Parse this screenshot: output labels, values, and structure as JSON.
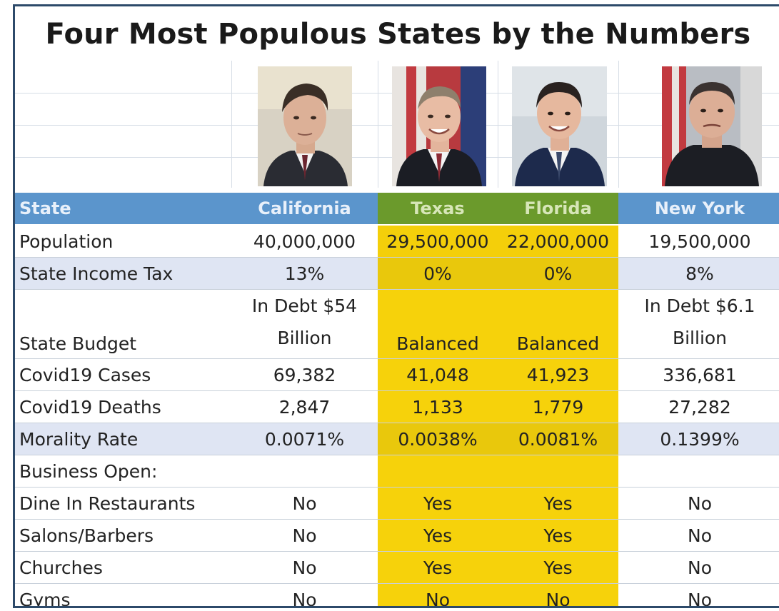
{
  "title": "Four Most Populous States by the Numbers",
  "photos": [
    {
      "name": "california-governor",
      "suit": "#2a2c33",
      "tie": "#6a2630",
      "bg": "#d8d2c4"
    },
    {
      "name": "texas-governor",
      "suit": "#1b1d24",
      "tie": "#8c2a34",
      "bg": "#b83a3f"
    },
    {
      "name": "florida-governor",
      "suit": "#1d2a4c",
      "tie": "#3b4a6c",
      "bg": "#cfd6dc"
    },
    {
      "name": "new-york-governor",
      "suit": "#1c1e24",
      "tie": "#1c1e24",
      "bg": "#b9bdc3"
    }
  ],
  "header": {
    "state": "State",
    "cols": [
      "California",
      "Texas",
      "Florida",
      "New York"
    ]
  },
  "rows": {
    "population": {
      "label": "Population",
      "values": [
        "40,000,000",
        "29,500,000",
        "22,000,000",
        "19,500,000"
      ]
    },
    "income_tax": {
      "label": "State Income Tax",
      "values": [
        "13%",
        "0%",
        "0%",
        "8%"
      ]
    },
    "budget": {
      "label": "State Budget",
      "california": [
        "In Debt $54",
        "Billion"
      ],
      "texas": "Balanced",
      "florida": "Balanced",
      "new_york": [
        "In Debt $6.1",
        "Billion"
      ]
    },
    "covid_cases": {
      "label": "Covid19 Cases",
      "values": [
        "69,382",
        "41,048",
        "41,923",
        "336,681"
      ]
    },
    "covid_deaths": {
      "label": "Covid19 Deaths",
      "values": [
        "2,847",
        "1,133",
        "1,779",
        "27,282"
      ]
    },
    "morality": {
      "label": "Morality Rate",
      "values": [
        "0.0071%",
        "0.0038%",
        "0.0081%",
        "0.1399%"
      ]
    },
    "business": {
      "label": "Business Open:"
    },
    "dine_in": {
      "label": "Dine In Restaurants",
      "values": [
        "No",
        "Yes",
        "Yes",
        "No"
      ]
    },
    "salons": {
      "label": "Salons/Barbers",
      "values": [
        "No",
        "Yes",
        "Yes",
        "No"
      ]
    },
    "churches": {
      "label": "Churches",
      "values": [
        "No",
        "Yes",
        "Yes",
        "No"
      ]
    },
    "gyms": {
      "label": "Gyms",
      "values": [
        "No",
        "No",
        "No",
        "No"
      ]
    }
  }
}
